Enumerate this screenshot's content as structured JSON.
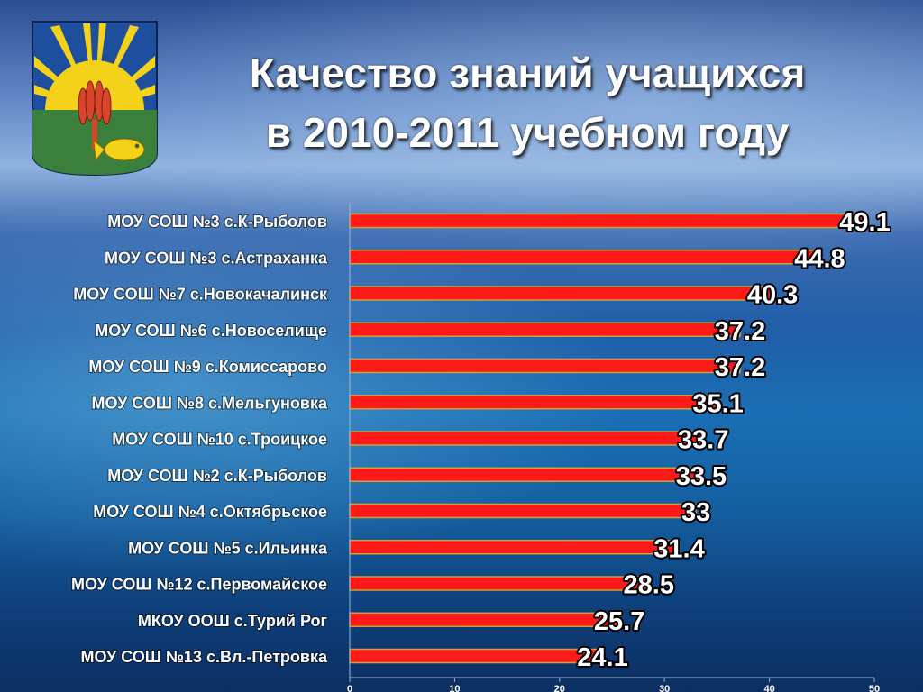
{
  "header": {
    "title_line1": "Качество знаний учащихся",
    "title_line2": "в 2010-2011 учебном году"
  },
  "emblem": {
    "name": "district-coat-of-arms-icon",
    "colors": {
      "background": "#1e4e9e",
      "field": "#3a7f3c",
      "rays": "#f4d21a",
      "sheaf": "#d8452a",
      "fish": "#f4d21a"
    }
  },
  "colors": {
    "bar": "#ff1a1a",
    "bar_outline": "#c9a23a",
    "text": "#ffffff"
  },
  "chart_data": {
    "type": "bar",
    "orientation": "horizontal",
    "categories": [
      "МОУ СОШ №3 с.К-Рыболов",
      "МОУ СОШ №3 с.Астраханка",
      "МОУ СОШ №7 с.Новокачалинск",
      "МОУ СОШ №6 с.Новоселище",
      "МОУ СОШ №9 с.Комиссарово",
      "МОУ СОШ №8 с.Мельгуновка",
      "МОУ СОШ №10 с.Троицкое",
      "МОУ СОШ №2 с.К-Рыболов",
      "МОУ СОШ №4 с.Октябрьское",
      "МОУ СОШ №5 с.Ильинка",
      "МОУ СОШ №12 с.Первомайское",
      "МКОУ ООШ с.Турий Рог",
      "МОУ СОШ №13 с.Вл.-Петровка"
    ],
    "values": [
      49.1,
      44.8,
      40.3,
      37.2,
      37.2,
      35.1,
      33.7,
      33.5,
      33,
      31.4,
      28.5,
      25.7,
      24.1
    ],
    "value_labels": [
      "49.1",
      "44.8",
      "40.3",
      "37.2",
      "37.2",
      "35.1",
      "33.7",
      "33.5",
      "33",
      "31.4",
      "28.5",
      "25.7",
      "24.1"
    ],
    "xlim": [
      0,
      50
    ],
    "xticks": [
      "0",
      "10",
      "20",
      "30",
      "40",
      "50"
    ],
    "xlabel": "",
    "ylabel": "",
    "grid": false,
    "legend": "none"
  }
}
